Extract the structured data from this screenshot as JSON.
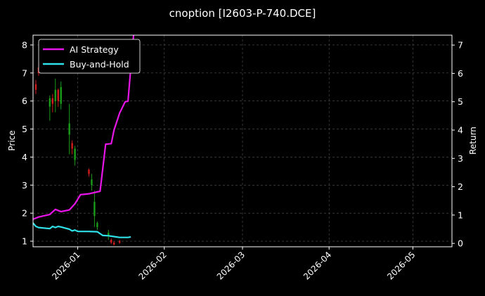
{
  "chart_data": {
    "type": "line",
    "title": "cnoption [I2603-P-740.DCE]",
    "ylabel": "Price",
    "y2label": "Return",
    "xlim": [
      "2025-12-16",
      "2026-05-15"
    ],
    "ylim": [
      0.8,
      8.35
    ],
    "y2lim": [
      -0.12,
      7.35
    ],
    "grid": true,
    "legend_position": "top-left",
    "x_ticks": [
      "2026-01",
      "2026-02",
      "2026-03",
      "2026-04",
      "2026-05"
    ],
    "y_ticks": [
      1,
      2,
      3,
      4,
      5,
      6,
      7,
      8
    ],
    "y2_ticks": [
      0,
      1,
      2,
      3,
      4,
      5,
      6,
      7
    ],
    "colors": {
      "background": "#000000",
      "ai": "#e815e8",
      "bh": "#2fe0e8",
      "up": "#1a9c1a",
      "down": "#d01c1c",
      "grid": "#555555"
    },
    "candles": [
      {
        "date": "2025-12-17",
        "open": 6.6,
        "close": 6.4,
        "high": 6.75,
        "low": 6.25
      },
      {
        "date": "2025-12-18",
        "open": 7.2,
        "close": 7.0,
        "high": 7.35,
        "low": 6.9
      },
      {
        "date": "2025-12-22",
        "open": 5.8,
        "close": 6.1,
        "high": 6.2,
        "low": 5.3
      },
      {
        "date": "2025-12-23",
        "open": 6.1,
        "close": 5.9,
        "high": 6.25,
        "low": 5.6
      },
      {
        "date": "2025-12-24",
        "open": 6.0,
        "close": 6.4,
        "high": 6.8,
        "low": 5.6
      },
      {
        "date": "2025-12-25",
        "open": 6.4,
        "close": 6.0,
        "high": 6.45,
        "low": 5.8
      },
      {
        "date": "2025-12-26",
        "open": 5.9,
        "close": 6.5,
        "high": 6.7,
        "low": 5.7
      },
      {
        "date": "2025-12-29",
        "open": 4.8,
        "close": 5.2,
        "high": 5.9,
        "low": 4.1
      },
      {
        "date": "2025-12-30",
        "open": 4.5,
        "close": 4.3,
        "high": 4.6,
        "low": 4.1
      },
      {
        "date": "2025-12-31",
        "open": 3.9,
        "close": 4.3,
        "high": 4.4,
        "low": 3.7
      },
      {
        "date": "2026-01-05",
        "open": 3.55,
        "close": 3.4,
        "high": 3.6,
        "low": 3.3
      },
      {
        "date": "2026-01-06",
        "open": 3.0,
        "close": 3.2,
        "high": 3.4,
        "low": 2.8
      },
      {
        "date": "2026-01-07",
        "open": 1.9,
        "close": 2.4,
        "high": 2.8,
        "low": 1.5
      },
      {
        "date": "2026-01-08",
        "open": 1.5,
        "close": 1.65,
        "high": 1.7,
        "low": 1.4
      },
      {
        "date": "2026-01-12",
        "open": 1.2,
        "close": 1.3,
        "high": 1.4,
        "low": 1.05
      },
      {
        "date": "2026-01-13",
        "open": 1.05,
        "close": 0.95,
        "high": 1.1,
        "low": 0.9
      },
      {
        "date": "2026-01-14",
        "open": 0.95,
        "close": 0.88,
        "high": 1.0,
        "low": 0.85
      },
      {
        "date": "2026-01-16",
        "open": 1.0,
        "close": 0.95,
        "high": 1.05,
        "low": 0.9
      }
    ],
    "series": [
      {
        "name": "AI Strategy",
        "values": [
          {
            "date": "2025-12-16",
            "value": 0.85
          },
          {
            "date": "2025-12-18",
            "value": 0.93
          },
          {
            "date": "2025-12-22",
            "value": 1.02
          },
          {
            "date": "2025-12-24",
            "value": 1.2
          },
          {
            "date": "2025-12-26",
            "value": 1.12
          },
          {
            "date": "2025-12-29",
            "value": 1.18
          },
          {
            "date": "2025-12-31",
            "value": 1.4
          },
          {
            "date": "2026-01-02",
            "value": 1.72
          },
          {
            "date": "2026-01-05",
            "value": 1.75
          },
          {
            "date": "2026-01-09",
            "value": 1.84
          },
          {
            "date": "2026-01-11",
            "value": 3.5
          },
          {
            "date": "2026-01-13",
            "value": 3.52
          },
          {
            "date": "2026-01-14",
            "value": 4.0
          },
          {
            "date": "2026-01-16",
            "value": 4.6
          },
          {
            "date": "2026-01-18",
            "value": 5.0
          },
          {
            "date": "2026-01-19",
            "value": 5.02
          },
          {
            "date": "2026-01-20",
            "value": 6.2
          },
          {
            "date": "2026-01-21",
            "value": 7.35
          }
        ]
      },
      {
        "name": "Buy-and-Hold",
        "values": [
          {
            "date": "2025-12-16",
            "value": 0.72
          },
          {
            "date": "2025-12-17",
            "value": 0.6
          },
          {
            "date": "2025-12-18",
            "value": 0.56
          },
          {
            "date": "2025-12-22",
            "value": 0.52
          },
          {
            "date": "2025-12-23",
            "value": 0.6
          },
          {
            "date": "2025-12-24",
            "value": 0.56
          },
          {
            "date": "2025-12-25",
            "value": 0.6
          },
          {
            "date": "2025-12-26",
            "value": 0.58
          },
          {
            "date": "2025-12-29",
            "value": 0.5
          },
          {
            "date": "2025-12-30",
            "value": 0.44
          },
          {
            "date": "2025-12-31",
            "value": 0.47
          },
          {
            "date": "2026-01-01",
            "value": 0.42
          },
          {
            "date": "2026-01-05",
            "value": 0.42
          },
          {
            "date": "2026-01-08",
            "value": 0.41
          },
          {
            "date": "2026-01-10",
            "value": 0.28
          },
          {
            "date": "2026-01-12",
            "value": 0.27
          },
          {
            "date": "2026-01-14",
            "value": 0.24
          },
          {
            "date": "2026-01-16",
            "value": 0.21
          },
          {
            "date": "2026-01-19",
            "value": 0.21
          },
          {
            "date": "2026-01-20",
            "value": 0.23
          }
        ]
      }
    ]
  }
}
